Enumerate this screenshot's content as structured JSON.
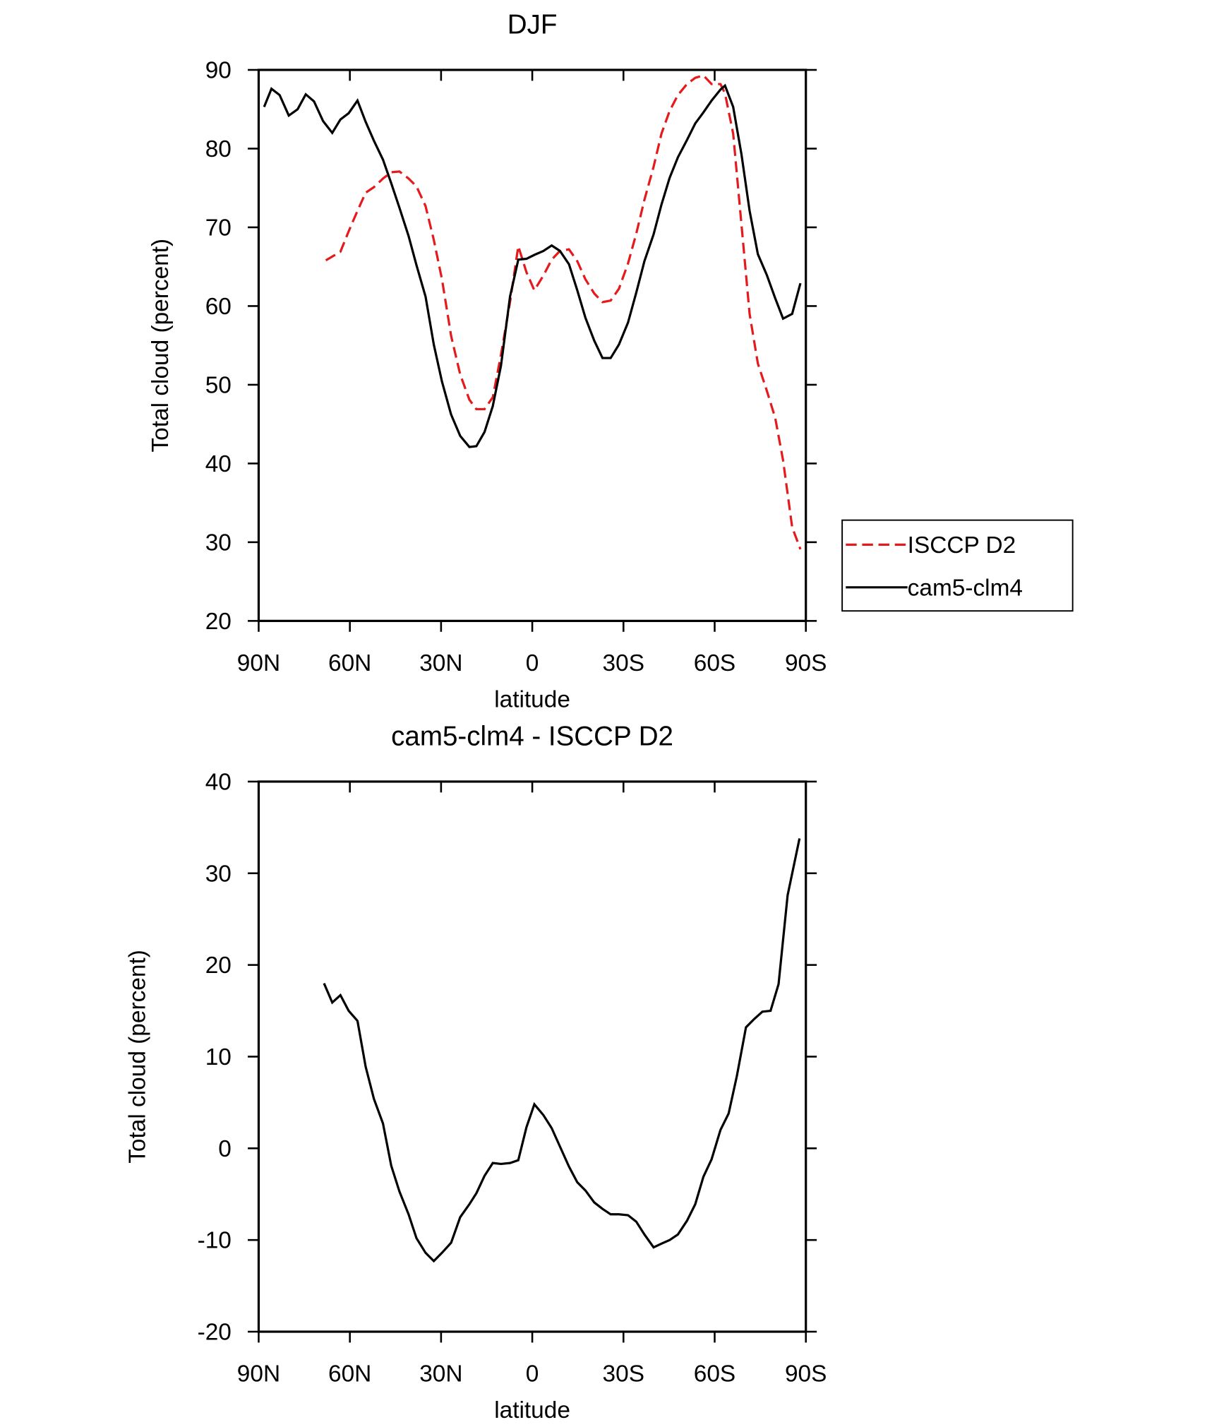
{
  "chart_data": [
    {
      "type": "line",
      "title": "DJF",
      "x_label": "latitude",
      "y_label": "Total cloud (percent)",
      "xlim": [
        90,
        -90
      ],
      "ylim": [
        20,
        90
      ],
      "xticks": [
        {
          "value": 90,
          "label": "90N"
        },
        {
          "value": 60,
          "label": "60N"
        },
        {
          "value": 30,
          "label": "30N"
        },
        0,
        {
          "value": -30,
          "label": "30S"
        },
        {
          "value": -60,
          "label": "60S"
        },
        {
          "value": -90,
          "label": "90S"
        }
      ],
      "yticks": [
        20,
        30,
        40,
        50,
        60,
        70,
        80,
        90
      ],
      "legend": "outside-right",
      "series": [
        {
          "name": "ISCCP D2",
          "color": "#e41a1c",
          "dash": true,
          "x": [
            67.9,
            63.1,
            60.4,
            57.5,
            54.8,
            52.1,
            49.1,
            46.4,
            43.7,
            40.7,
            38.1,
            35.1,
            32.4,
            29.7,
            26.7,
            23.7,
            20.7,
            18.4,
            15.7,
            13.0,
            10.3,
            7.3,
            4.6,
            1.9,
            -0.7,
            -3.7,
            -6.4,
            -9.1,
            -12.1,
            -14.8,
            -17.5,
            -20.4,
            -23.1,
            -25.8,
            -28.5,
            -31.5,
            -34.2,
            -36.9,
            -39.9,
            -42.5,
            -45.2,
            -47.9,
            -50.9,
            -53.6,
            -56.3,
            -59.0,
            -61.9,
            -63.4,
            -66.1,
            -68.8,
            -71.5,
            -74.2,
            -77.2,
            -79.9,
            -82.5,
            -85.5,
            -88.2
          ],
          "values": [
            65.8,
            66.9,
            69.5,
            72.1,
            74.4,
            75.1,
            76.2,
            77.0,
            77.1,
            76.2,
            75.2,
            72.7,
            68.4,
            63.4,
            56.2,
            51.3,
            48.1,
            46.9,
            46.9,
            48.4,
            53.8,
            60.5,
            67.6,
            64.3,
            62.0,
            63.9,
            65.9,
            67.0,
            67.2,
            65.7,
            63.4,
            61.6,
            60.5,
            60.7,
            62.2,
            65.4,
            69.2,
            73.5,
            77.7,
            81.9,
            84.8,
            86.8,
            88.2,
            89.0,
            89.3,
            88.2,
            88.2,
            87.0,
            81.9,
            70.4,
            59.0,
            52.7,
            49.2,
            45.8,
            40.4,
            31.9,
            29.1
          ]
        },
        {
          "name": "cam5-clm4",
          "color": "#000000",
          "dash": false,
          "x": [
            88.2,
            85.8,
            83.1,
            80.1,
            77.2,
            74.5,
            71.8,
            68.8,
            65.8,
            63.1,
            60.4,
            57.5,
            54.8,
            52.1,
            49.1,
            46.4,
            43.7,
            40.7,
            38.1,
            35.1,
            32.4,
            29.7,
            26.7,
            23.7,
            20.7,
            18.4,
            15.7,
            13.0,
            10.3,
            7.3,
            4.6,
            1.9,
            -0.7,
            -3.7,
            -6.4,
            -9.1,
            -12.1,
            -14.8,
            -17.5,
            -20.4,
            -23.1,
            -25.8,
            -28.5,
            -31.5,
            -34.2,
            -36.9,
            -39.9,
            -42.5,
            -45.2,
            -47.9,
            -50.9,
            -53.6,
            -56.3,
            -59.0,
            -61.9,
            -63.4,
            -66.1,
            -68.8,
            -71.5,
            -74.2,
            -77.2,
            -79.9,
            -82.5,
            -85.5,
            -88.2
          ],
          "values": [
            85.3,
            87.6,
            86.8,
            84.2,
            85.0,
            86.9,
            86.0,
            83.5,
            82.0,
            83.7,
            84.5,
            86.1,
            83.4,
            81.0,
            78.6,
            75.6,
            72.5,
            68.9,
            65.2,
            61.2,
            55.1,
            50.4,
            46.2,
            43.5,
            42.1,
            42.2,
            44.0,
            47.3,
            52.4,
            61.2,
            65.9,
            66.0,
            66.5,
            67.0,
            67.7,
            67.0,
            65.3,
            62.0,
            58.5,
            55.6,
            53.4,
            53.4,
            55.1,
            57.9,
            61.7,
            65.7,
            69.1,
            72.9,
            76.3,
            78.9,
            81.1,
            83.2,
            84.6,
            86.1,
            87.5,
            88.0,
            85.3,
            79.3,
            72.1,
            66.6,
            63.9,
            61.0,
            58.4,
            59.0,
            62.9
          ]
        }
      ]
    },
    {
      "type": "line",
      "title": "cam5-clm4 - ISCCP D2",
      "x_label": "latitude",
      "y_label": "Total cloud (percent)",
      "xlim": [
        90,
        -90
      ],
      "ylim": [
        -20,
        40
      ],
      "xticks": [
        {
          "value": 90,
          "label": "90N"
        },
        {
          "value": 60,
          "label": "60N"
        },
        {
          "value": 30,
          "label": "30N"
        },
        0,
        {
          "value": -30,
          "label": "30S"
        },
        {
          "value": -60,
          "label": "60S"
        },
        {
          "value": -90,
          "label": "90S"
        }
      ],
      "yticks": [
        -20,
        -10,
        0,
        10,
        20,
        30,
        40
      ],
      "series": [
        {
          "color": "#000000",
          "dash": false,
          "x": [
            68.5,
            65.8,
            63.1,
            60.4,
            57.5,
            54.8,
            52.1,
            49.1,
            46.4,
            43.7,
            40.7,
            38.1,
            35.1,
            32.4,
            29.7,
            26.7,
            23.7,
            20.7,
            18.4,
            15.7,
            13.0,
            10.3,
            7.3,
            4.6,
            1.9,
            -0.7,
            -3.7,
            -6.4,
            -9.1,
            -12.1,
            -14.8,
            -17.5,
            -20.4,
            -23.1,
            -25.8,
            -28.5,
            -31.5,
            -34.2,
            -36.9,
            -39.9,
            -42.5,
            -45.2,
            -47.9,
            -50.9,
            -53.6,
            -56.3,
            -59.0,
            -61.9,
            -64.6,
            -67.3,
            -70.3,
            -73.0,
            -75.7,
            -78.4,
            -81.0,
            -84.0,
            -87.9
          ],
          "values": [
            18.0,
            15.9,
            16.7,
            15.0,
            13.9,
            8.9,
            5.4,
            2.7,
            -1.9,
            -4.7,
            -7.2,
            -9.8,
            -11.4,
            -12.3,
            -11.4,
            -10.3,
            -7.5,
            -6.1,
            -4.9,
            -3.0,
            -1.6,
            -1.7,
            -1.6,
            -1.3,
            2.3,
            4.8,
            3.6,
            2.2,
            0.2,
            -2.0,
            -3.7,
            -4.6,
            -5.9,
            -6.6,
            -7.2,
            -7.2,
            -7.3,
            -8.0,
            -9.4,
            -10.8,
            -10.4,
            -10.0,
            -9.4,
            -7.9,
            -6.1,
            -3.1,
            -1.2,
            2.0,
            3.8,
            7.9,
            13.2,
            14.1,
            14.9,
            15.0,
            17.9,
            27.6,
            33.8
          ]
        }
      ]
    }
  ]
}
